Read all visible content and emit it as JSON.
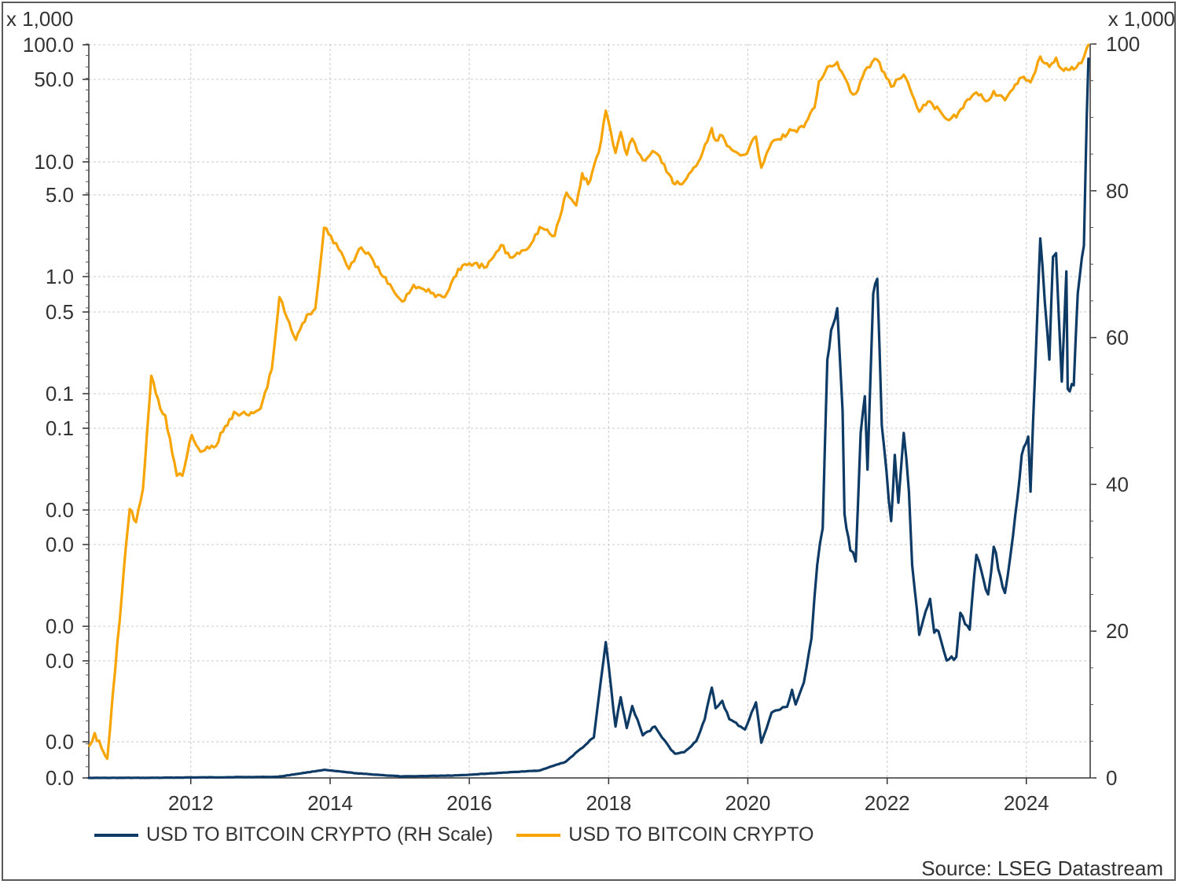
{
  "chart_data": {
    "type": "line",
    "title": "",
    "xlabel": "",
    "x_ticks": [
      "2012",
      "2014",
      "2016",
      "2018",
      "2020",
      "2022",
      "2024"
    ],
    "left_axis": {
      "scale": "log",
      "multiplier_label": "x 1,000",
      "tick_labels": [
        "100.0",
        "50.0",
        "10.0",
        "5.0",
        "1.0",
        "0.5",
        "0.1",
        "0.1",
        "0.0",
        "0.0",
        "0.0",
        "0.0",
        "0.0",
        "0.0"
      ]
    },
    "right_axis": {
      "scale": "linear",
      "multiplier_label": "x 1,000",
      "ylim": [
        0,
        100
      ],
      "tick_labels": [
        "100",
        "80",
        "60",
        "40",
        "20",
        "0"
      ]
    },
    "grid": true,
    "legend_position": "bottom-left",
    "series": [
      {
        "name": "USD TO BITCOIN CRYPTO (RH Scale)",
        "axis": "right",
        "color": "#0e3a66",
        "points": [
          [
            "2010-07-15",
            5e-05
          ],
          [
            "2011-06-01",
            0.015
          ],
          [
            "2013-04-01",
            0.15
          ],
          [
            "2013-11-30",
            1.1
          ],
          [
            "2014-06-01",
            0.6
          ],
          [
            "2015-01-15",
            0.2
          ],
          [
            "2015-11-01",
            0.35
          ],
          [
            "2016-06-15",
            0.7
          ],
          [
            "2017-01-01",
            1.0
          ],
          [
            "2017-05-20",
            2.2
          ],
          [
            "2017-09-01",
            4.5
          ],
          [
            "2017-10-15",
            5.5
          ],
          [
            "2017-12-17",
            18.5
          ],
          [
            "2018-01-15",
            12.0
          ],
          [
            "2018-02-06",
            7.0
          ],
          [
            "2018-03-05",
            11.0
          ],
          [
            "2018-04-06",
            6.8
          ],
          [
            "2018-05-05",
            9.8
          ],
          [
            "2018-06-29",
            5.8
          ],
          [
            "2018-09-01",
            7.0
          ],
          [
            "2018-11-25",
            3.8
          ],
          [
            "2018-12-15",
            3.3
          ],
          [
            "2019-02-01",
            3.5
          ],
          [
            "2019-04-05",
            5.0
          ],
          [
            "2019-05-20",
            8.0
          ],
          [
            "2019-06-26",
            12.3
          ],
          [
            "2019-07-16",
            9.5
          ],
          [
            "2019-08-20",
            10.5
          ],
          [
            "2019-09-26",
            8.0
          ],
          [
            "2019-11-25",
            7.0
          ],
          [
            "2019-12-17",
            6.6
          ],
          [
            "2020-02-13",
            10.3
          ],
          [
            "2020-03-12",
            4.8
          ],
          [
            "2020-05-05",
            8.9
          ],
          [
            "2020-07-25",
            9.7
          ],
          [
            "2020-08-20",
            12.0
          ],
          [
            "2020-09-08",
            10.0
          ],
          [
            "2020-10-21",
            13.0
          ],
          [
            "2020-11-30",
            19.0
          ],
          [
            "2020-12-30",
            29.0
          ],
          [
            "2021-01-28",
            34.0
          ],
          [
            "2021-02-21",
            57.0
          ],
          [
            "2021-03-13",
            61.0
          ],
          [
            "2021-04-14",
            64.0
          ],
          [
            "2021-05-12",
            50.0
          ],
          [
            "2021-05-22",
            36.0
          ],
          [
            "2021-06-22",
            31.0
          ],
          [
            "2021-07-20",
            29.5
          ],
          [
            "2021-08-15",
            47.0
          ],
          [
            "2021-09-06",
            52.0
          ],
          [
            "2021-09-20",
            42.0
          ],
          [
            "2021-10-20",
            66.0
          ],
          [
            "2021-11-10",
            68.0
          ],
          [
            "2021-12-04",
            48.0
          ],
          [
            "2022-01-22",
            35.0
          ],
          [
            "2022-02-10",
            44.0
          ],
          [
            "2022-03-01",
            37.5
          ],
          [
            "2022-03-29",
            47.0
          ],
          [
            "2022-04-25",
            39.0
          ],
          [
            "2022-05-12",
            29.0
          ],
          [
            "2022-06-18",
            19.5
          ],
          [
            "2022-08-14",
            24.4
          ],
          [
            "2022-09-05",
            19.8
          ],
          [
            "2022-09-27",
            20.0
          ],
          [
            "2022-11-09",
            16.0
          ],
          [
            "2022-12-30",
            16.5
          ],
          [
            "2023-01-20",
            22.5
          ],
          [
            "2023-03-10",
            20.2
          ],
          [
            "2023-04-14",
            30.4
          ],
          [
            "2023-06-15",
            25.0
          ],
          [
            "2023-07-14",
            31.5
          ],
          [
            "2023-09-11",
            25.2
          ],
          [
            "2023-10-23",
            33.0
          ],
          [
            "2023-12-08",
            44.0
          ],
          [
            "2024-01-11",
            46.5
          ],
          [
            "2024-01-23",
            39.0
          ],
          [
            "2024-03-14",
            73.5
          ],
          [
            "2024-05-01",
            57.0
          ],
          [
            "2024-05-20",
            71.0
          ],
          [
            "2024-06-05",
            71.5
          ],
          [
            "2024-07-05",
            54.0
          ],
          [
            "2024-07-29",
            69.0
          ],
          [
            "2024-08-05",
            53.0
          ],
          [
            "2024-09-06",
            53.5
          ],
          [
            "2024-09-27",
            66.0
          ],
          [
            "2024-10-29",
            72.5
          ],
          [
            "2024-11-13",
            90.0
          ],
          [
            "2024-11-22",
            98.0
          ]
        ]
      },
      {
        "name": "USD TO BITCOIN CRYPTO",
        "axis": "left",
        "color": "#f7a400",
        "points": [
          [
            "2010-07-18",
            3.3e-06
          ],
          [
            "2010-08-15",
            4.5e-06
          ],
          [
            "2010-10-01",
            2.8e-06
          ],
          [
            "2010-10-20",
            2.4e-06
          ],
          [
            "2010-12-01",
            2.2e-05
          ],
          [
            "2011-01-15",
            0.00025
          ],
          [
            "2011-02-15",
            0.0011
          ],
          [
            "2011-03-20",
            0.0008
          ],
          [
            "2011-04-25",
            0.0018
          ],
          [
            "2011-06-08",
            0.029
          ],
          [
            "2011-07-25",
            0.013
          ],
          [
            "2011-08-20",
            0.011
          ],
          [
            "2011-10-20",
            0.0025
          ],
          [
            "2011-11-18",
            0.0025
          ],
          [
            "2012-01-06",
            0.0068
          ],
          [
            "2012-02-20",
            0.0045
          ],
          [
            "2012-05-01",
            0.005
          ],
          [
            "2012-08-15",
            0.012
          ],
          [
            "2012-11-01",
            0.011
          ],
          [
            "2013-01-01",
            0.013
          ],
          [
            "2013-03-01",
            0.034
          ],
          [
            "2013-04-10",
            0.2
          ],
          [
            "2013-05-20",
            0.12
          ],
          [
            "2013-07-05",
            0.07
          ],
          [
            "2013-09-01",
            0.13
          ],
          [
            "2013-10-15",
            0.15
          ],
          [
            "2013-11-30",
            1.1
          ],
          [
            "2014-01-05",
            0.9
          ],
          [
            "2014-03-01",
            0.6
          ],
          [
            "2014-04-10",
            0.4
          ],
          [
            "2014-06-01",
            0.65
          ],
          [
            "2014-08-01",
            0.55
          ],
          [
            "2014-10-05",
            0.33
          ],
          [
            "2015-01-14",
            0.18
          ],
          [
            "2015-03-15",
            0.27
          ],
          [
            "2015-05-20",
            0.23
          ],
          [
            "2015-08-25",
            0.2
          ],
          [
            "2015-11-04",
            0.4
          ],
          [
            "2015-12-20",
            0.44
          ],
          [
            "2016-04-01",
            0.42
          ],
          [
            "2016-06-16",
            0.72
          ],
          [
            "2016-08-02",
            0.53
          ],
          [
            "2016-11-20",
            0.74
          ],
          [
            "2017-01-04",
            1.12
          ],
          [
            "2017-03-24",
            0.9
          ],
          [
            "2017-05-25",
            2.6
          ],
          [
            "2017-07-15",
            1.9
          ],
          [
            "2017-08-15",
            4.2
          ],
          [
            "2017-09-15",
            3.2
          ],
          [
            "2017-11-10",
            7.0
          ],
          [
            "2017-12-17",
            19.5
          ],
          [
            "2018-02-06",
            6.9
          ],
          [
            "2018-03-05",
            11.5
          ],
          [
            "2018-04-06",
            6.6
          ],
          [
            "2018-05-05",
            9.8
          ],
          [
            "2018-06-29",
            5.8
          ],
          [
            "2018-09-01",
            7.0
          ],
          [
            "2018-11-25",
            3.8
          ],
          [
            "2018-12-15",
            3.2
          ],
          [
            "2019-02-01",
            3.4
          ],
          [
            "2019-04-05",
            5.0
          ],
          [
            "2019-06-26",
            12.7
          ],
          [
            "2019-07-16",
            9.4
          ],
          [
            "2019-08-20",
            10.6
          ],
          [
            "2019-09-26",
            8.0
          ],
          [
            "2019-12-17",
            6.6
          ],
          [
            "2020-02-13",
            10.3
          ],
          [
            "2020-03-12",
            4.8
          ],
          [
            "2020-05-05",
            8.9
          ],
          [
            "2020-08-20",
            12.0
          ],
          [
            "2020-10-21",
            13.0
          ],
          [
            "2020-12-16",
            21.0
          ],
          [
            "2021-01-08",
            40.0
          ],
          [
            "2021-02-21",
            57.0
          ],
          [
            "2021-04-14",
            64.0
          ],
          [
            "2021-06-22",
            31.0
          ],
          [
            "2021-07-20",
            29.5
          ],
          [
            "2021-09-06",
            52.0
          ],
          [
            "2021-11-10",
            68.0
          ],
          [
            "2022-01-22",
            35.0
          ],
          [
            "2022-03-29",
            47.0
          ],
          [
            "2022-05-12",
            29.0
          ],
          [
            "2022-06-18",
            19.0
          ],
          [
            "2022-08-14",
            24.4
          ],
          [
            "2022-11-09",
            15.8
          ],
          [
            "2022-12-30",
            16.5
          ],
          [
            "2023-02-15",
            24.0
          ],
          [
            "2023-04-14",
            30.4
          ],
          [
            "2023-06-15",
            25.0
          ],
          [
            "2023-07-14",
            31.5
          ],
          [
            "2023-09-11",
            25.2
          ],
          [
            "2023-10-23",
            33.0
          ],
          [
            "2023-12-08",
            44.0
          ],
          [
            "2024-01-23",
            39.0
          ],
          [
            "2024-03-14",
            73.5
          ],
          [
            "2024-05-01",
            57.0
          ],
          [
            "2024-06-05",
            71.5
          ],
          [
            "2024-07-05",
            54.0
          ],
          [
            "2024-08-05",
            53.0
          ],
          [
            "2024-09-06",
            53.5
          ],
          [
            "2024-10-29",
            72.5
          ],
          [
            "2024-11-13",
            90.0
          ],
          [
            "2024-11-22",
            98.0
          ]
        ]
      }
    ]
  },
  "source": "Source: LSEG Datastream"
}
